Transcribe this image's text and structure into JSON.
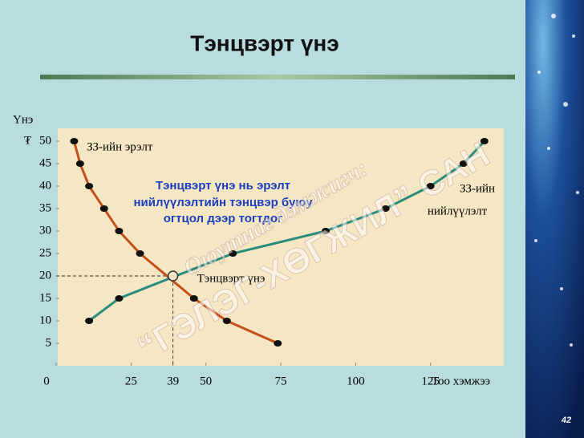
{
  "chart_data": {
    "type": "line",
    "title": "Тэнцвэрт үнэ",
    "y_label": "Үнэ",
    "y_unit": "₮",
    "x_label": "Тоо хэмжээ",
    "xlim": [
      0,
      150
    ],
    "ylim": [
      0,
      50
    ],
    "xticks": [
      0,
      25,
      39,
      50,
      75,
      100,
      125
    ],
    "yticks": [
      5,
      10,
      15,
      20,
      25,
      30,
      35,
      40,
      45,
      50
    ],
    "series": [
      {
        "name": "ЗЗ-ийн эрэлт",
        "color": "#c4501c",
        "x": [
          6,
          8,
          11,
          16,
          21,
          28,
          46,
          57,
          74
        ],
        "values": [
          50,
          45,
          40,
          35,
          30,
          25,
          15,
          10,
          5
        ]
      },
      {
        "name": "ЗЗ-ийн нийлүүлэлт",
        "color": "#2a8c7c",
        "x": [
          11,
          21,
          59,
          90,
          110,
          125,
          136,
          143
        ],
        "values": [
          10,
          15,
          25,
          30,
          35,
          40,
          45,
          50
        ]
      }
    ],
    "equilibrium": {
      "label": "Тэнцвэрт үнэ",
      "x": 39,
      "y": 20
    },
    "annotation_lines": [
      "Тэнцвэрт үнэ нь эрэлт",
      "нийлүүлэлтийн тэнцвэр буюу",
      "огтцол дээр тогтдог"
    ],
    "supply_label_lines": [
      "ЗЗ-ийн",
      "нийлүүлэлт"
    ],
    "watermark": [
      "Оюутнаг дэмжигч:",
      "“ГЭЛЭГ-ХӨГЖИЛ” САН"
    ],
    "page_number": "42"
  }
}
